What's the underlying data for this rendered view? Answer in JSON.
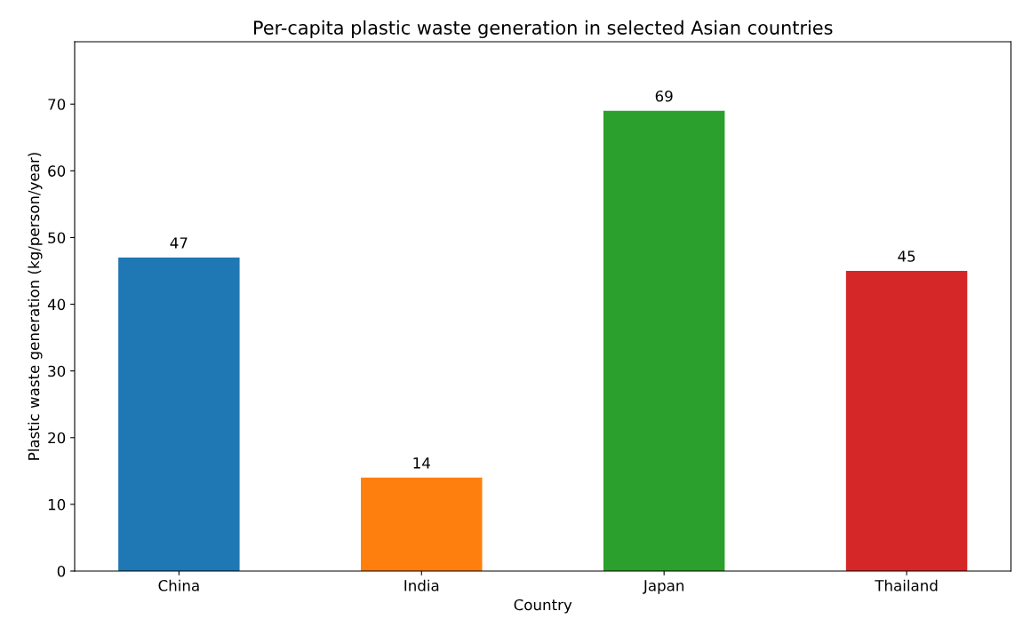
{
  "chart_data": {
    "type": "bar",
    "title": "Per-capita plastic waste generation in selected Asian countries",
    "xlabel": "Country",
    "ylabel": "Plastic waste generation (kg/person/year)",
    "categories": [
      "China",
      "India",
      "Japan",
      "Thailand"
    ],
    "values": [
      47,
      14,
      69,
      45
    ],
    "colors": [
      "#1f77b4",
      "#ff7f0e",
      "#2ca02c",
      "#d62728"
    ],
    "ylim": [
      0,
      79.35
    ],
    "yticks": [
      0,
      10,
      20,
      30,
      40,
      50,
      60,
      70
    ],
    "data_labels": true,
    "grid": false
  }
}
